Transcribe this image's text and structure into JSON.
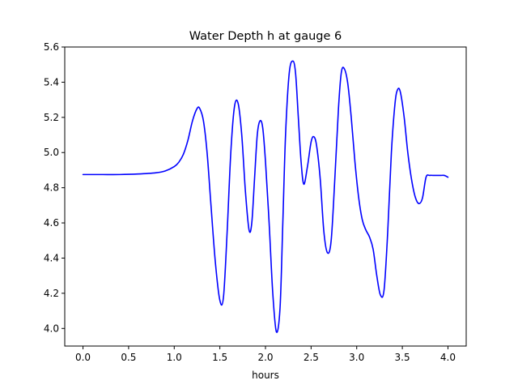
{
  "chart_data": {
    "type": "line",
    "title": "Water Depth h at gauge 6",
    "xlabel": "hours",
    "ylabel": "",
    "xlim": [
      -0.2,
      4.2
    ],
    "ylim": [
      3.9,
      5.6
    ],
    "xticks": [
      0.0,
      0.5,
      1.0,
      1.5,
      2.0,
      2.5,
      3.0,
      3.5,
      4.0
    ],
    "xtick_labels": [
      "0.0",
      "0.5",
      "1.0",
      "1.5",
      "2.0",
      "2.5",
      "3.0",
      "3.5",
      "4.0"
    ],
    "yticks": [
      4.0,
      4.2,
      4.4,
      4.6,
      4.8,
      5.0,
      5.2,
      5.4,
      5.6
    ],
    "ytick_labels": [
      "4.0",
      "4.2",
      "4.4",
      "4.6",
      "4.8",
      "5.0",
      "5.2",
      "5.4",
      "5.6"
    ],
    "grid": false,
    "series": [
      {
        "color": "#0000ff",
        "x": [
          0.0,
          0.2,
          0.4,
          0.6,
          0.8,
          0.9,
          1.0,
          1.05,
          1.1,
          1.15,
          1.2,
          1.25,
          1.28,
          1.32,
          1.36,
          1.4,
          1.45,
          1.5,
          1.54,
          1.58,
          1.62,
          1.66,
          1.7,
          1.74,
          1.78,
          1.82,
          1.85,
          1.88,
          1.91,
          1.94,
          1.97,
          2.0,
          2.04,
          2.08,
          2.12,
          2.16,
          2.19,
          2.22,
          2.26,
          2.3,
          2.33,
          2.36,
          2.39,
          2.42,
          2.46,
          2.5,
          2.53,
          2.56,
          2.6,
          2.64,
          2.68,
          2.72,
          2.76,
          2.8,
          2.83,
          2.86,
          2.9,
          2.94,
          2.98,
          3.02,
          3.06,
          3.1,
          3.14,
          3.18,
          3.22,
          3.26,
          3.3,
          3.34,
          3.38,
          3.42,
          3.45,
          3.48,
          3.52,
          3.56,
          3.6,
          3.64,
          3.68,
          3.72,
          3.76,
          3.8,
          3.84,
          3.88,
          3.92,
          3.96,
          4.0
        ],
        "y": [
          4.875,
          4.875,
          4.875,
          4.878,
          4.885,
          4.895,
          4.92,
          4.945,
          4.99,
          5.07,
          5.18,
          5.25,
          5.25,
          5.18,
          5.0,
          4.72,
          4.38,
          4.16,
          4.18,
          4.55,
          5.0,
          5.26,
          5.28,
          5.1,
          4.78,
          4.56,
          4.6,
          4.85,
          5.1,
          5.18,
          5.14,
          4.95,
          4.6,
          4.2,
          3.98,
          4.12,
          4.6,
          5.1,
          5.45,
          5.52,
          5.45,
          5.2,
          4.95,
          4.82,
          4.92,
          5.06,
          5.09,
          5.04,
          4.85,
          4.55,
          4.43,
          4.5,
          4.85,
          5.25,
          5.45,
          5.48,
          5.4,
          5.2,
          4.95,
          4.75,
          4.62,
          4.56,
          4.52,
          4.45,
          4.3,
          4.19,
          4.22,
          4.55,
          5.0,
          5.28,
          5.36,
          5.34,
          5.2,
          5.0,
          4.85,
          4.75,
          4.71,
          4.74,
          4.86,
          4.87,
          4.87,
          4.87,
          4.87,
          4.87,
          4.86
        ]
      }
    ]
  }
}
